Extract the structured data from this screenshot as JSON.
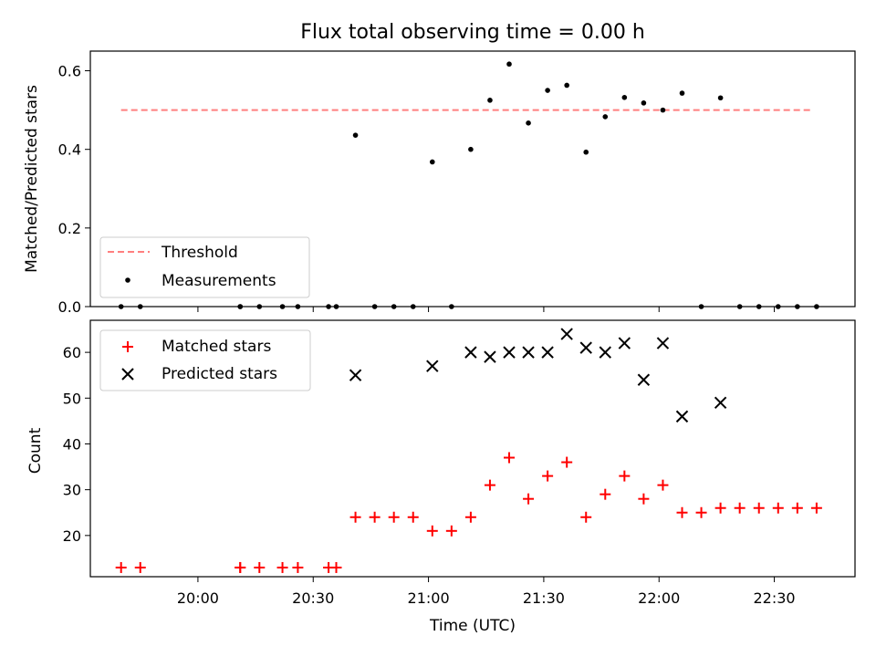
{
  "chart_data": [
    {
      "type": "scatter",
      "title": "Flux total observing time = 0.00 h",
      "ylabel": "Matched/Predicted stars",
      "ylim": [
        0,
        0.65
      ],
      "yticks": [
        "0.0",
        "0.2",
        "0.4",
        "0.6"
      ],
      "xticks": [
        "20:00",
        "20:30",
        "21:00",
        "21:30",
        "22:00",
        "22:30"
      ],
      "threshold": {
        "name": "Threshold",
        "value": 0.5,
        "x_range": [
          "19:40",
          "22:40"
        ],
        "color": "#ff7f7f"
      },
      "measurements": {
        "name": "Measurements",
        "color": "#000000",
        "points": [
          [
            "19:40",
            0.0
          ],
          [
            "19:45",
            0.0
          ],
          [
            "20:11",
            0.0
          ],
          [
            "20:11",
            0.0
          ],
          [
            "20:16",
            0.0
          ],
          [
            "20:22",
            0.0
          ],
          [
            "20:26",
            0.0
          ],
          [
            "20:34",
            0.0
          ],
          [
            "20:36",
            0.0
          ],
          [
            "20:41",
            0.436
          ],
          [
            "20:46",
            0.0
          ],
          [
            "20:51",
            0.0
          ],
          [
            "20:56",
            0.0
          ],
          [
            "21:01",
            0.368
          ],
          [
            "21:06",
            0.0
          ],
          [
            "21:11",
            0.4
          ],
          [
            "21:16",
            0.525
          ],
          [
            "21:21",
            0.617
          ],
          [
            "21:26",
            0.467
          ],
          [
            "21:31",
            0.55
          ],
          [
            "21:36",
            0.563
          ],
          [
            "21:41",
            0.393
          ],
          [
            "21:46",
            0.483
          ],
          [
            "21:51",
            0.532
          ],
          [
            "21:56",
            0.518
          ],
          [
            "22:01",
            0.5
          ],
          [
            "22:06",
            0.543
          ],
          [
            "22:11",
            0.0
          ],
          [
            "22:16",
            0.531
          ],
          [
            "22:21",
            0.0
          ],
          [
            "22:26",
            0.0
          ],
          [
            "22:31",
            0.0
          ],
          [
            "22:36",
            0.0
          ],
          [
            "22:41",
            0.0
          ]
        ]
      },
      "legend": "lower-left"
    },
    {
      "type": "scatter",
      "xlabel": "Time (UTC)",
      "ylabel": "Count",
      "ylim": [
        11,
        67
      ],
      "yticks": [
        "20",
        "30",
        "40",
        "50",
        "60"
      ],
      "xticks": [
        "20:00",
        "20:30",
        "21:00",
        "21:30",
        "22:00",
        "22:30"
      ],
      "series": [
        {
          "name": "Matched stars",
          "marker": "plus",
          "color": "#ff0000",
          "points": [
            [
              "19:40",
              13
            ],
            [
              "19:45",
              13
            ],
            [
              "20:11",
              13
            ],
            [
              "20:11",
              13
            ],
            [
              "20:16",
              13
            ],
            [
              "20:22",
              13
            ],
            [
              "20:26",
              13
            ],
            [
              "20:34",
              13
            ],
            [
              "20:36",
              13
            ],
            [
              "20:41",
              24
            ],
            [
              "20:46",
              24
            ],
            [
              "20:51",
              24
            ],
            [
              "20:56",
              24
            ],
            [
              "21:01",
              21
            ],
            [
              "21:06",
              21
            ],
            [
              "21:11",
              24
            ],
            [
              "21:16",
              31
            ],
            [
              "21:21",
              37
            ],
            [
              "21:26",
              28
            ],
            [
              "21:31",
              33
            ],
            [
              "21:36",
              36
            ],
            [
              "21:41",
              24
            ],
            [
              "21:46",
              29
            ],
            [
              "21:51",
              33
            ],
            [
              "21:56",
              28
            ],
            [
              "22:01",
              31
            ],
            [
              "22:06",
              25
            ],
            [
              "22:11",
              25
            ],
            [
              "22:16",
              26
            ],
            [
              "22:21",
              26
            ],
            [
              "22:26",
              26
            ],
            [
              "22:31",
              26
            ],
            [
              "22:36",
              26
            ],
            [
              "22:41",
              26
            ]
          ]
        },
        {
          "name": "Predicted stars",
          "marker": "x",
          "color": "#000000",
          "points": [
            [
              "20:41",
              55
            ],
            [
              "21:01",
              57
            ],
            [
              "21:11",
              60
            ],
            [
              "21:16",
              59
            ],
            [
              "21:21",
              60
            ],
            [
              "21:26",
              60
            ],
            [
              "21:31",
              60
            ],
            [
              "21:36",
              64
            ],
            [
              "21:41",
              61
            ],
            [
              "21:46",
              60
            ],
            [
              "21:51",
              62
            ],
            [
              "21:56",
              54
            ],
            [
              "22:01",
              62
            ],
            [
              "22:06",
              46
            ],
            [
              "22:16",
              49
            ]
          ]
        }
      ],
      "legend": "top-left"
    }
  ]
}
